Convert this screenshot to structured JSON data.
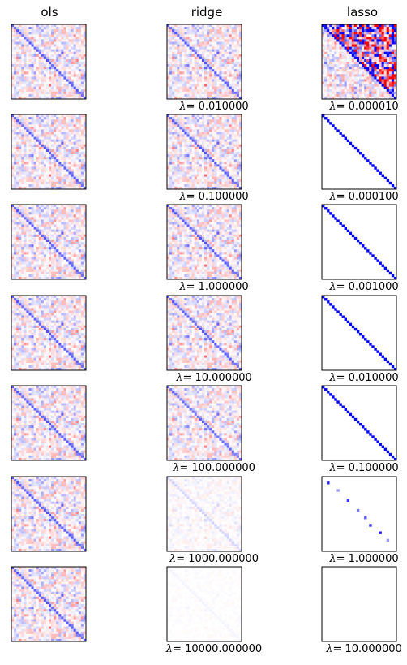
{
  "columns": [
    {
      "key": "ols",
      "title": "ols"
    },
    {
      "key": "ridge",
      "title": "ridge"
    },
    {
      "key": "lasso",
      "title": "lasso"
    }
  ],
  "lambda_symbol": "λ",
  "ridge_lambdas": [
    "= 0.010000",
    "= 0.100000",
    "= 1.000000",
    "= 10.000000",
    "= 100.000000",
    "= 1000.000000",
    "= 10000.000000"
  ],
  "lasso_lambdas": [
    "= 0.000010",
    "= 0.000100",
    "= 0.001000",
    "= 0.010000",
    "= 0.100000",
    "= 1.000000",
    "= 10.000000"
  ],
  "colors": {
    "positive": "#d62728",
    "negative": "#1f2bd6",
    "diagonal_lasso": "#00006e",
    "frame": "#000000"
  },
  "chart_data": {
    "type": "heatmap",
    "description_rows": 7,
    "columns": [
      "ols",
      "ridge",
      "lasso"
    ],
    "colormap": "bwr",
    "ridge_lambda": [
      0.01,
      0.1,
      1.0,
      10.0,
      100.0,
      1000.0,
      10000.0
    ],
    "lasso_lambda": [
      1e-05,
      0.0001,
      0.001,
      0.01,
      0.1,
      1.0,
      10.0
    ],
    "matrix_size": 30,
    "ridge_shrinkage": [
      1.0,
      1.0,
      1.0,
      0.98,
      0.9,
      0.45,
      0.12
    ],
    "lasso_mode": [
      "noisy-upper",
      "diagonal",
      "diagonal",
      "diagonal",
      "diagonal",
      "sparse",
      "empty"
    ]
  }
}
